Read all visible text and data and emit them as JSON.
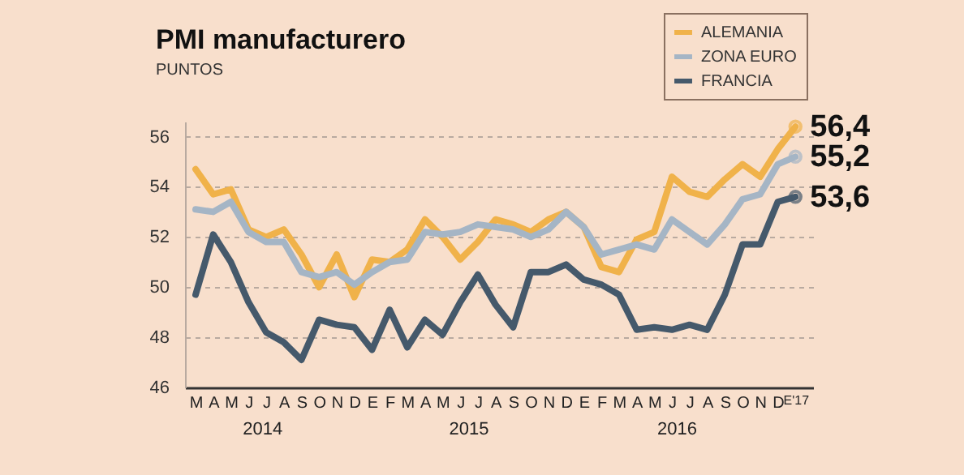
{
  "chart_data": {
    "type": "line",
    "title": "PMI manufacturero",
    "subtitle": "PUNTOS",
    "categories": [
      "M",
      "A",
      "M",
      "J",
      "J",
      "A",
      "S",
      "O",
      "N",
      "D",
      "E",
      "F",
      "M",
      "A",
      "M",
      "J",
      "J",
      "A",
      "S",
      "O",
      "N",
      "D",
      "E",
      "F",
      "M",
      "A",
      "M",
      "J",
      "J",
      "A",
      "S",
      "O",
      "N",
      "D",
      "E'17"
    ],
    "annotations": [
      "2014",
      "2015",
      "2016"
    ],
    "ylim": [
      46,
      56.6
    ],
    "yticks": [
      46,
      48,
      50,
      52,
      54,
      56
    ],
    "grid": "y",
    "legend": "top right",
    "line_style": "solid",
    "series": [
      {
        "name": "ALEMANIA",
        "color": "#f0b24a",
        "values": [
          54.7,
          53.7,
          53.9,
          52.3,
          52.0,
          52.3,
          51.3,
          50.0,
          51.3,
          49.6,
          51.1,
          51.0,
          51.5,
          52.7,
          52.0,
          51.1,
          51.8,
          52.7,
          52.5,
          52.2,
          52.7,
          53.0,
          52.4,
          50.8,
          50.6,
          51.9,
          52.2,
          54.4,
          53.8,
          53.6,
          54.3,
          54.9,
          54.4,
          55.5,
          56.4
        ],
        "value_labels": [
          null,
          null,
          null,
          null,
          null,
          null,
          null,
          null,
          null,
          null,
          null,
          null,
          null,
          null,
          null,
          null,
          null,
          null,
          null,
          null,
          null,
          null,
          null,
          null,
          null,
          null,
          null,
          null,
          null,
          null,
          null,
          null,
          null,
          null,
          "56,4"
        ]
      },
      {
        "name": "ZONA EURO",
        "color": "#a5b5c5",
        "values": [
          53.1,
          53.0,
          53.4,
          52.2,
          51.8,
          51.8,
          50.6,
          50.4,
          50.6,
          50.1,
          50.6,
          51.0,
          51.1,
          52.2,
          52.1,
          52.2,
          52.5,
          52.4,
          52.3,
          52.0,
          52.3,
          53.0,
          52.4,
          51.3,
          51.5,
          51.7,
          51.5,
          52.7,
          52.2,
          51.7,
          52.5,
          53.5,
          53.7,
          54.9,
          55.2
        ],
        "value_labels": [
          null,
          null,
          null,
          null,
          null,
          null,
          null,
          null,
          null,
          null,
          null,
          null,
          null,
          null,
          null,
          null,
          null,
          null,
          null,
          null,
          null,
          null,
          null,
          null,
          null,
          null,
          null,
          null,
          null,
          null,
          null,
          null,
          null,
          null,
          "55,2"
        ]
      },
      {
        "name": "FRANCIA",
        "color": "#45596b",
        "values": [
          49.7,
          52.1,
          51.0,
          49.4,
          48.2,
          47.8,
          47.1,
          48.7,
          48.5,
          48.4,
          47.5,
          49.1,
          47.6,
          48.7,
          48.1,
          49.4,
          50.5,
          49.3,
          48.4,
          50.6,
          50.6,
          50.9,
          50.3,
          50.1,
          49.7,
          48.3,
          48.4,
          48.3,
          48.5,
          48.3,
          49.7,
          51.7,
          51.7,
          53.4,
          53.6
        ],
        "value_labels": [
          null,
          null,
          null,
          null,
          null,
          null,
          null,
          null,
          null,
          null,
          null,
          null,
          null,
          null,
          null,
          null,
          null,
          null,
          null,
          null,
          null,
          null,
          null,
          null,
          null,
          null,
          null,
          null,
          null,
          null,
          null,
          null,
          null,
          null,
          "53,6"
        ]
      }
    ]
  }
}
